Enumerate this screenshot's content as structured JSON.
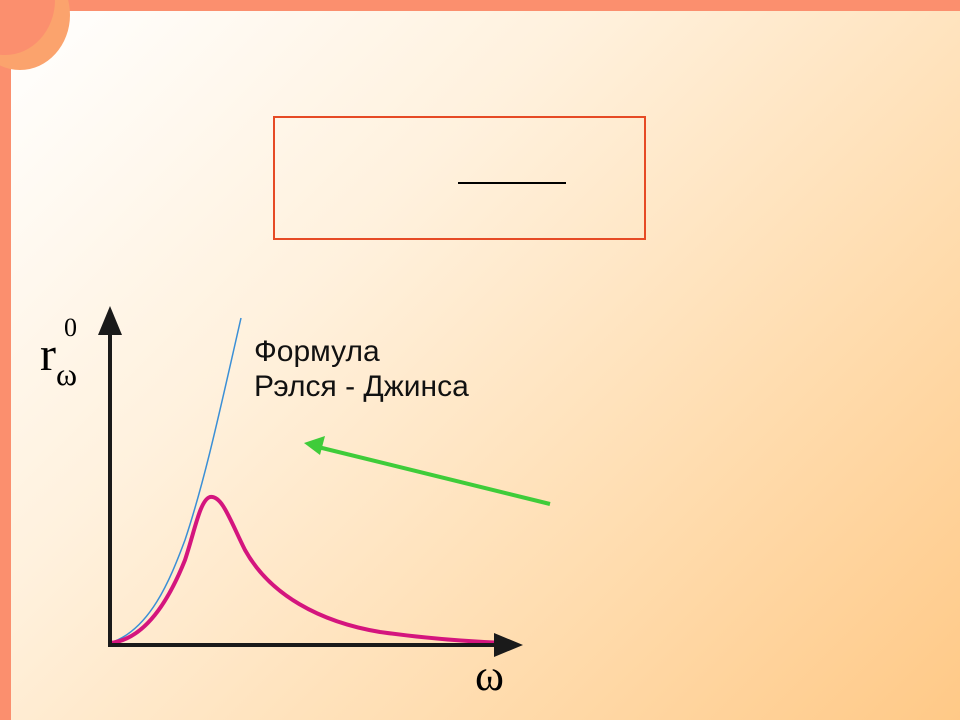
{
  "diagram": {
    "y_axis_label": {
      "main": "r",
      "subscript": "ω",
      "superscript": "0"
    },
    "x_axis_label": "ω",
    "curve_label": {
      "line1": "Формула",
      "line2": "Рэлся - Джинса"
    }
  },
  "colors": {
    "slide_border": "#fb8f6e",
    "formula_box_border": "#e64a25",
    "rayleigh_jeans_curve": "#3a8fd6",
    "planck_curve": "#d4157e",
    "pointer_arrow": "#3fcc3a",
    "axes": "#1a1a1a"
  },
  "icons": {
    "pointer": "arrow-left-icon"
  }
}
